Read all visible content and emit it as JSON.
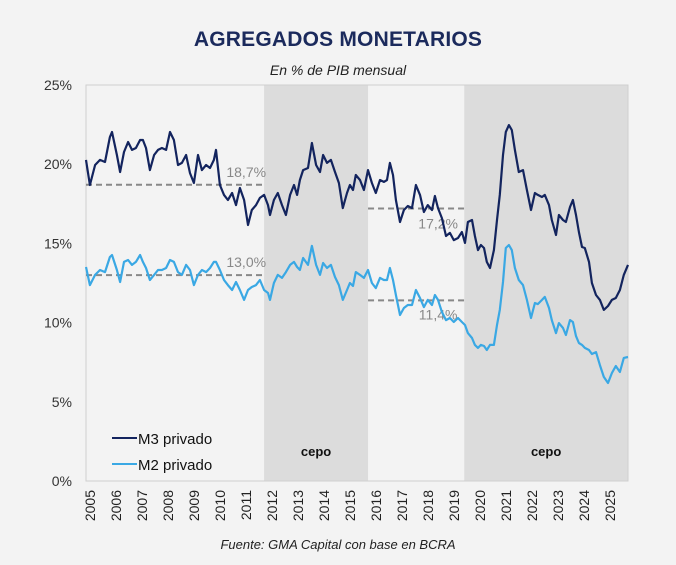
{
  "chart_data": {
    "type": "line",
    "title": "AGREGADOS MONETARIOS",
    "subtitle": "En % de PIB mensual",
    "source": "Fuente: GMA Capital con base en BCRA",
    "xlabel": "",
    "ylabel": "",
    "ylim": [
      0,
      25
    ],
    "xlim": [
      2005.0,
      2025.85
    ],
    "y_ticks": [
      "0%",
      "5%",
      "10%",
      "15%",
      "20%",
      "25%"
    ],
    "y_tick_values": [
      0,
      5,
      10,
      15,
      20,
      25
    ],
    "x_ticks": [
      "2005",
      "2006",
      "2007",
      "2008",
      "2009",
      "2010",
      "2011",
      "2012",
      "2013",
      "2014",
      "2015",
      "2016",
      "2017",
      "2018",
      "2019",
      "2020",
      "2021",
      "2022",
      "2023",
      "2024",
      "2025"
    ],
    "grid": false,
    "legend_position": "bottom-left",
    "colors": {
      "m3": "#13245e",
      "m2": "#3aa8e4",
      "shade": "#dcdcdc",
      "dash": "#888888"
    },
    "shaded_periods": [
      {
        "label": "cepo",
        "start": 2011.85,
        "end": 2015.85
      },
      {
        "label": "cepo",
        "start": 2019.55,
        "end": 2025.85
      }
    ],
    "reference_lines": [
      {
        "series": "M3 privado",
        "value": 18.7,
        "label": "18,7%",
        "start": 2005.0,
        "end": 2011.85
      },
      {
        "series": "M2 privado",
        "value": 13.0,
        "label": "13,0%",
        "start": 2005.0,
        "end": 2011.85
      },
      {
        "series": "M3 privado",
        "value": 17.2,
        "label": "17,2%",
        "start": 2015.85,
        "end": 2019.55
      },
      {
        "series": "M2 privado",
        "value": 11.4,
        "label": "11,4%",
        "start": 2015.85,
        "end": 2019.55
      }
    ],
    "x": [
      2005.0,
      2005.15,
      2005.35,
      2005.54,
      2005.73,
      2005.92,
      2006.0,
      2006.19,
      2006.31,
      2006.46,
      2006.62,
      2006.77,
      2006.92,
      2007.08,
      2007.19,
      2007.31,
      2007.46,
      2007.62,
      2007.77,
      2007.92,
      2008.08,
      2008.23,
      2008.38,
      2008.54,
      2008.69,
      2008.85,
      2009.0,
      2009.15,
      2009.31,
      2009.46,
      2009.62,
      2009.77,
      2009.92,
      2010.0,
      2010.15,
      2010.31,
      2010.46,
      2010.62,
      2010.77,
      2010.92,
      2011.08,
      2011.23,
      2011.38,
      2011.54,
      2011.69,
      2011.85,
      2012.0,
      2012.08,
      2012.23,
      2012.38,
      2012.54,
      2012.69,
      2012.85,
      2013.0,
      2013.12,
      2013.23,
      2013.35,
      2013.54,
      2013.69,
      2013.85,
      2014.0,
      2014.12,
      2014.27,
      2014.42,
      2014.58,
      2014.73,
      2014.88,
      2015.04,
      2015.15,
      2015.27,
      2015.38,
      2015.54,
      2015.69,
      2015.85,
      2016.0,
      2016.15,
      2016.31,
      2016.46,
      2016.58,
      2016.69,
      2016.81,
      2016.92,
      2017.08,
      2017.23,
      2017.38,
      2017.54,
      2017.69,
      2017.85,
      2018.0,
      2018.15,
      2018.31,
      2018.42,
      2018.54,
      2018.69,
      2018.85,
      2019.0,
      2019.15,
      2019.31,
      2019.46,
      2019.58,
      2019.69,
      2019.85,
      2019.96,
      2020.08,
      2020.19,
      2020.31,
      2020.42,
      2020.54,
      2020.69,
      2020.81,
      2020.92,
      2021.04,
      2021.15,
      2021.27,
      2021.38,
      2021.5,
      2021.65,
      2021.81,
      2021.96,
      2022.12,
      2022.27,
      2022.38,
      2022.54,
      2022.65,
      2022.81,
      2022.92,
      2023.08,
      2023.19,
      2023.35,
      2023.46,
      2023.62,
      2023.73,
      2023.85,
      2023.96,
      2024.08,
      2024.19,
      2024.35,
      2024.46,
      2024.62,
      2024.77,
      2024.92,
      2025.08,
      2025.23,
      2025.38,
      2025.54,
      2025.69,
      2025.85
    ],
    "series": [
      {
        "name": "M3 privado",
        "key": "m3",
        "values": [
          20.27,
          18.69,
          19.95,
          20.27,
          20.14,
          21.72,
          22.03,
          20.58,
          19.51,
          20.77,
          21.4,
          20.9,
          21.02,
          21.53,
          21.53,
          21.02,
          19.63,
          20.58,
          20.9,
          21.02,
          20.9,
          22.03,
          21.53,
          19.95,
          20.08,
          20.58,
          19.44,
          18.81,
          20.58,
          19.63,
          19.95,
          19.76,
          20.27,
          20.9,
          18.69,
          18.06,
          17.74,
          18.18,
          17.42,
          18.5,
          17.74,
          16.16,
          17.11,
          17.42,
          17.87,
          18.06,
          17.42,
          16.79,
          17.74,
          18.18,
          17.42,
          16.79,
          18.06,
          18.69,
          18.06,
          19.0,
          19.63,
          19.76,
          21.34,
          19.95,
          19.51,
          20.58,
          20.08,
          20.27,
          19.51,
          18.81,
          17.23,
          18.18,
          18.69,
          18.37,
          19.32,
          19.0,
          18.37,
          19.63,
          18.81,
          18.18,
          19.0,
          18.88,
          19.0,
          20.08,
          19.32,
          17.74,
          16.35,
          17.11,
          17.36,
          17.23,
          18.69,
          18.06,
          16.98,
          17.42,
          17.11,
          17.99,
          17.23,
          16.6,
          15.47,
          15.66,
          15.21,
          15.34,
          15.72,
          15.03,
          16.35,
          16.48,
          15.47,
          14.58,
          14.9,
          14.71,
          13.83,
          13.45,
          14.58,
          16.48,
          18.06,
          20.58,
          22.03,
          22.47,
          22.16,
          20.9,
          19.51,
          19.63,
          18.37,
          17.11,
          18.18,
          18.06,
          17.93,
          18.06,
          17.42,
          16.48,
          15.53,
          16.79,
          16.48,
          16.35,
          17.3,
          17.74,
          16.79,
          15.72,
          14.77,
          14.71,
          13.83,
          12.5,
          11.74,
          11.43,
          10.8,
          11.05,
          11.43,
          11.55,
          12.06,
          13.01,
          13.64
        ]
      },
      {
        "name": "M2 privado",
        "key": "m2",
        "values": [
          13.51,
          12.37,
          13.01,
          13.32,
          13.19,
          14.14,
          14.27,
          13.32,
          12.56,
          13.83,
          13.95,
          13.64,
          13.83,
          14.27,
          13.83,
          13.45,
          12.69,
          13.01,
          13.32,
          13.32,
          13.45,
          13.95,
          13.83,
          13.19,
          13.01,
          13.64,
          13.32,
          12.37,
          13.01,
          13.32,
          13.19,
          13.45,
          13.83,
          13.83,
          13.32,
          12.69,
          12.37,
          12.06,
          12.56,
          12.06,
          11.43,
          12.06,
          12.25,
          12.37,
          12.69,
          12.06,
          11.87,
          11.43,
          12.5,
          13.01,
          12.82,
          13.19,
          13.64,
          13.83,
          13.51,
          13.32,
          14.08,
          13.64,
          14.84,
          13.64,
          13.01,
          13.76,
          13.45,
          13.64,
          12.88,
          12.37,
          11.43,
          12.06,
          12.5,
          12.31,
          13.19,
          13.01,
          12.82,
          13.32,
          12.5,
          12.18,
          12.82,
          12.69,
          12.69,
          13.45,
          12.69,
          11.74,
          10.48,
          10.92,
          11.11,
          11.11,
          12.06,
          11.55,
          10.98,
          11.43,
          11.11,
          11.74,
          11.43,
          10.67,
          10.16,
          10.29,
          10.04,
          10.29,
          10.04,
          9.85,
          9.34,
          9.03,
          8.59,
          8.4,
          8.59,
          8.52,
          8.27,
          8.59,
          8.59,
          9.85,
          10.8,
          12.56,
          14.71,
          14.9,
          14.58,
          13.45,
          12.69,
          12.37,
          11.43,
          10.29,
          11.24,
          11.17,
          11.43,
          11.62,
          10.92,
          10.16,
          9.34,
          9.97,
          9.66,
          9.22,
          10.16,
          10.04,
          9.15,
          8.71,
          8.59,
          8.4,
          8.27,
          8.02,
          8.14,
          7.32,
          6.57,
          6.19,
          6.82,
          7.26,
          6.88,
          7.77,
          7.83
        ]
      }
    ]
  }
}
